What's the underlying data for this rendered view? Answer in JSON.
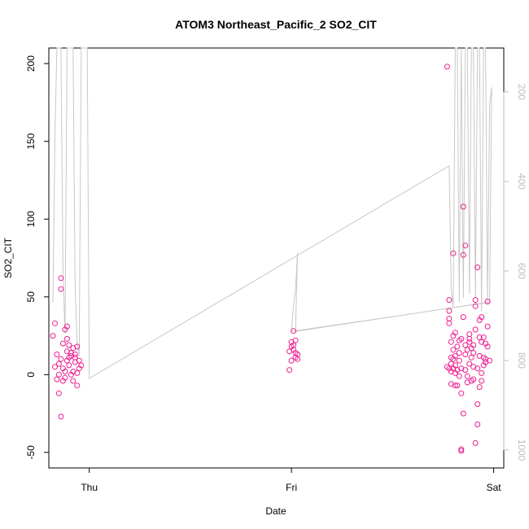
{
  "chart_data": {
    "type": "scatter",
    "title": "ATOM3 Northeast_Pacific_2 SO2_CIT",
    "xlabel": "Date",
    "ylabel": "SO2_CIT",
    "x_ticks": [
      "Thu",
      "Fri",
      "Sat"
    ],
    "xlim_days": [
      -0.2,
      2.05
    ],
    "ylim": [
      -60,
      210
    ],
    "y_ticks": [
      -50,
      0,
      50,
      100,
      150,
      200
    ],
    "y2_ticks": [
      200,
      400,
      600,
      800,
      1000
    ],
    "y2lim_reversed": [
      102,
      1040
    ],
    "colors": {
      "points": "#ee1f8f",
      "pressure_line": "#c8c8c8",
      "axes": "#000000",
      "y2_axis": "#bdbdbd"
    },
    "series": [
      {
        "marker": "open-circle",
        "points": [
          [
            -0.18,
            25
          ],
          [
            -0.17,
            33
          ],
          [
            -0.17,
            5
          ],
          [
            -0.16,
            13
          ],
          [
            -0.16,
            -3
          ],
          [
            -0.15,
            0
          ],
          [
            -0.15,
            7
          ],
          [
            -0.15,
            -12
          ],
          [
            -0.14,
            -27
          ],
          [
            -0.14,
            10
          ],
          [
            -0.14,
            62
          ],
          [
            -0.14,
            55
          ],
          [
            -0.13,
            4
          ],
          [
            -0.13,
            -4
          ],
          [
            -0.13,
            20
          ],
          [
            -0.12,
            29
          ],
          [
            -0.12,
            -2
          ],
          [
            -0.12,
            2
          ],
          [
            -0.11,
            9
          ],
          [
            -0.11,
            15
          ],
          [
            -0.11,
            31
          ],
          [
            -0.11,
            23
          ],
          [
            -0.1,
            11
          ],
          [
            -0.1,
            19
          ],
          [
            -0.1,
            6
          ],
          [
            -0.09,
            0
          ],
          [
            -0.09,
            12
          ],
          [
            -0.09,
            14
          ],
          [
            -0.08,
            2
          ],
          [
            -0.08,
            -4
          ],
          [
            -0.08,
            17
          ],
          [
            -0.07,
            11
          ],
          [
            -0.07,
            8
          ],
          [
            -0.07,
            13
          ],
          [
            -0.06,
            -7
          ],
          [
            -0.06,
            1
          ],
          [
            -0.06,
            18
          ],
          [
            -0.05,
            4
          ],
          [
            -0.05,
            9
          ],
          [
            -0.04,
            6
          ],
          [
            0.99,
            3
          ],
          [
            0.99,
            15
          ],
          [
            1.0,
            18
          ],
          [
            1.0,
            21
          ],
          [
            1.0,
            9
          ],
          [
            1.01,
            19
          ],
          [
            1.01,
            28
          ],
          [
            1.01,
            16
          ],
          [
            1.02,
            14
          ],
          [
            1.02,
            11
          ],
          [
            1.02,
            22
          ],
          [
            1.03,
            10
          ],
          [
            1.03,
            13
          ],
          [
            1.77,
            198
          ],
          [
            1.77,
            5
          ],
          [
            1.78,
            4
          ],
          [
            1.78,
            48
          ],
          [
            1.78,
            41
          ],
          [
            1.78,
            36
          ],
          [
            1.78,
            33
          ],
          [
            1.79,
            21
          ],
          [
            1.79,
            11
          ],
          [
            1.79,
            7
          ],
          [
            1.79,
            2
          ],
          [
            1.79,
            -6
          ],
          [
            1.8,
            78
          ],
          [
            1.8,
            25
          ],
          [
            1.8,
            16
          ],
          [
            1.8,
            10
          ],
          [
            1.8,
            4
          ],
          [
            1.81,
            -7
          ],
          [
            1.81,
            27
          ],
          [
            1.81,
            12
          ],
          [
            1.81,
            6
          ],
          [
            1.81,
            1
          ],
          [
            1.82,
            -7
          ],
          [
            1.82,
            18
          ],
          [
            1.82,
            3
          ],
          [
            1.83,
            22
          ],
          [
            1.83,
            14
          ],
          [
            1.83,
            9
          ],
          [
            1.83,
            -1
          ],
          [
            1.84,
            23
          ],
          [
            1.84,
            4
          ],
          [
            1.84,
            -12
          ],
          [
            1.84,
            -48
          ],
          [
            1.84,
            -49
          ],
          [
            1.85,
            -25
          ],
          [
            1.85,
            108
          ],
          [
            1.85,
            77
          ],
          [
            1.85,
            37
          ],
          [
            1.86,
            83
          ],
          [
            1.86,
            19
          ],
          [
            1.86,
            13
          ],
          [
            1.86,
            3
          ],
          [
            1.87,
            16
          ],
          [
            1.87,
            -1
          ],
          [
            1.87,
            -5
          ],
          [
            1.88,
            26
          ],
          [
            1.88,
            23
          ],
          [
            1.88,
            21
          ],
          [
            1.88,
            7
          ],
          [
            1.89,
            17
          ],
          [
            1.89,
            11
          ],
          [
            1.89,
            -4
          ],
          [
            1.9,
            19
          ],
          [
            1.9,
            14
          ],
          [
            1.9,
            5
          ],
          [
            1.9,
            -3
          ],
          [
            1.91,
            48
          ],
          [
            1.91,
            44
          ],
          [
            1.91,
            29
          ],
          [
            1.91,
            -44
          ],
          [
            1.92,
            4
          ],
          [
            1.92,
            -19
          ],
          [
            1.92,
            -32
          ],
          [
            1.92,
            69
          ],
          [
            1.93,
            35
          ],
          [
            1.93,
            24
          ],
          [
            1.93,
            12
          ],
          [
            1.93,
            -8
          ],
          [
            1.94,
            37
          ],
          [
            1.94,
            21
          ],
          [
            1.94,
            1
          ],
          [
            1.94,
            -4
          ],
          [
            1.95,
            24
          ],
          [
            1.95,
            11
          ],
          [
            1.95,
            6
          ],
          [
            1.96,
            10
          ],
          [
            1.96,
            20
          ],
          [
            1.96,
            8
          ],
          [
            1.97,
            31
          ],
          [
            1.97,
            47
          ],
          [
            1.97,
            18
          ],
          [
            1.98,
            9
          ]
        ]
      },
      {
        "name": "pressure",
        "axis": "right",
        "points": [
          [
            -0.18,
            670
          ],
          [
            -0.17,
            300
          ],
          [
            -0.16,
            102
          ],
          [
            -0.15,
            102
          ],
          [
            -0.14,
            102
          ],
          [
            -0.13,
            600
          ],
          [
            -0.12,
            740
          ],
          [
            -0.11,
            102
          ],
          [
            -0.1,
            102
          ],
          [
            -0.09,
            102
          ],
          [
            -0.08,
            102
          ],
          [
            -0.07,
            640
          ],
          [
            -0.06,
            760
          ],
          [
            -0.05,
            790
          ],
          [
            -0.04,
            102
          ],
          [
            -0.03,
            102
          ],
          [
            -0.02,
            102
          ],
          [
            -0.01,
            102
          ],
          [
            0.0,
            840
          ],
          [
            1.78,
            365
          ],
          [
            1.79,
            640
          ],
          [
            1.8,
            680
          ],
          [
            1.81,
            102
          ],
          [
            1.82,
            102
          ],
          [
            1.83,
            670
          ],
          [
            1.84,
            102
          ],
          [
            1.85,
            660
          ],
          [
            1.86,
            102
          ],
          [
            1.87,
            102
          ],
          [
            1.88,
            650
          ],
          [
            1.89,
            102
          ],
          [
            1.9,
            102
          ],
          [
            1.91,
            660
          ],
          [
            1.92,
            102
          ],
          [
            1.93,
            102
          ],
          [
            1.94,
            690
          ],
          [
            1.95,
            102
          ],
          [
            1.96,
            102
          ],
          [
            1.97,
            670
          ],
          [
            1.98,
            230
          ],
          [
            1.99,
            190
          ],
          [
            1.98,
            670
          ],
          [
            1.0,
            735
          ],
          [
            1.01,
            680
          ],
          [
            1.02,
            640
          ],
          [
            1.03,
            560
          ],
          [
            1.02,
            735
          ],
          [
            1.97,
            670
          ]
        ]
      }
    ]
  }
}
